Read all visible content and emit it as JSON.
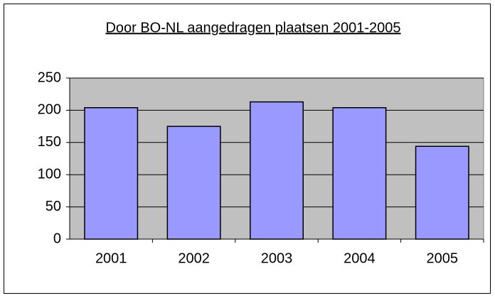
{
  "chart_data": {
    "type": "bar",
    "title": "Door BO-NL aangedragen plaatsen 2001-2005",
    "categories": [
      "2001",
      "2002",
      "2003",
      "2004",
      "2005"
    ],
    "values": [
      204,
      175,
      213,
      204,
      144
    ],
    "color": "#9999ff",
    "ylim": [
      0,
      250
    ],
    "yticks": [
      0,
      50,
      100,
      150,
      200,
      250
    ],
    "grid": true
  }
}
